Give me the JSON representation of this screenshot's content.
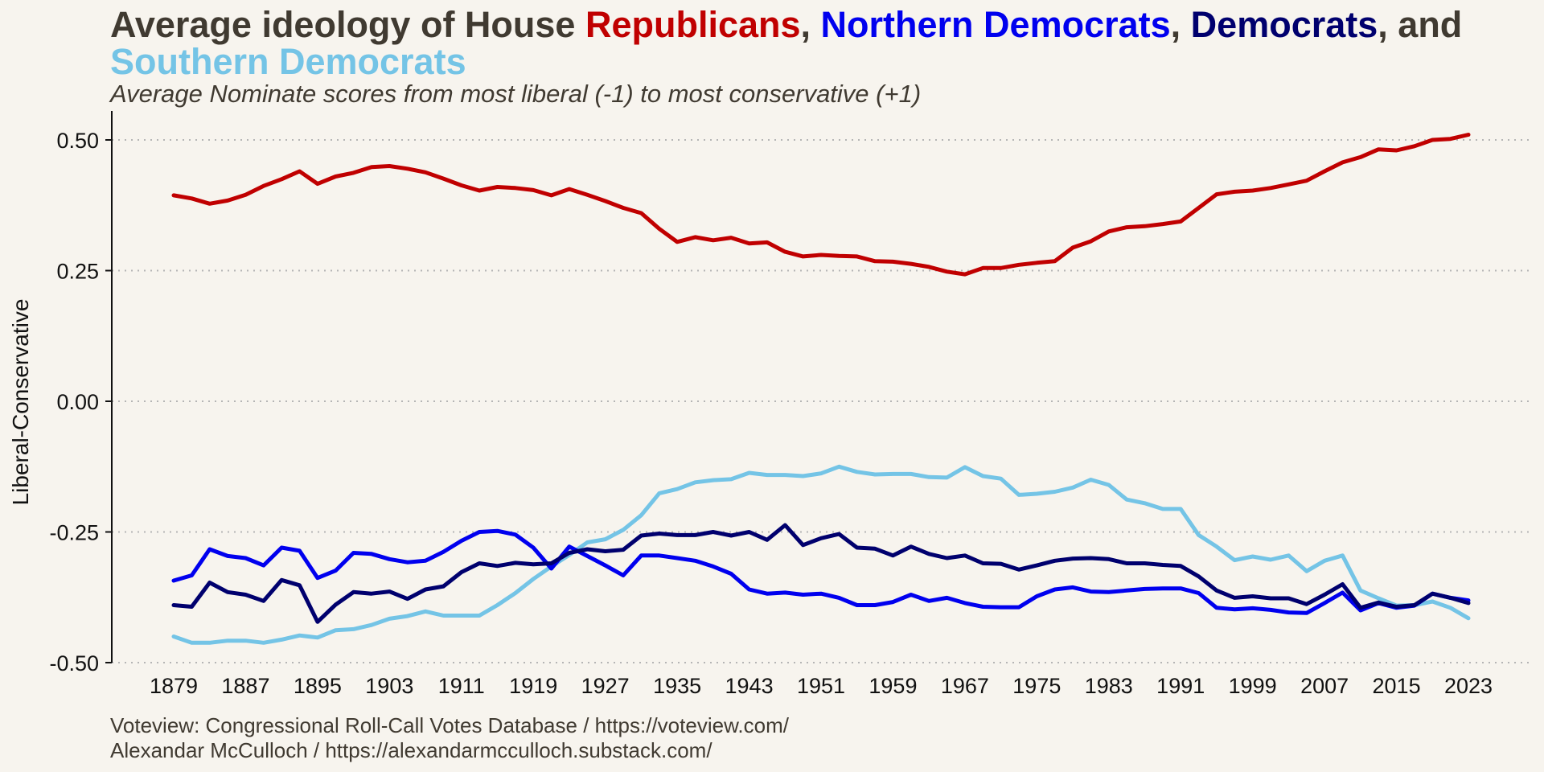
{
  "title_parts": {
    "p1": "Average ideology of House ",
    "rep": "Republicans",
    "c1": ", ",
    "nd": "Northern Democrats",
    "c2": ", ",
    "dem": "Democrats",
    "c3": ", and ",
    "sd": "Southern Democrats"
  },
  "subtitle": "Average Nominate scores from most liberal (-1) to most conservative (+1)",
  "caption": {
    "line1": "Voteview: Congressional Roll-Call Votes Database / https://voteview.com/",
    "line2": "Alexandar McCulloch / https://alexandarmcculloch.substack.com/"
  },
  "colors": {
    "republicans": "#c00000",
    "northern_democrats": "#0000ee",
    "democrats": "#00006e",
    "southern_democrats": "#74c4e6",
    "text": "#403a31",
    "background": "#f7f4ee",
    "grid": "#b5b5b5"
  },
  "chart_data": {
    "type": "line",
    "title": "Average ideology of House Republicans, Northern Democrats, Democrats, and Southern Democrats",
    "subtitle": "Average Nominate scores from most liberal (-1) to most conservative (+1)",
    "xlabel": "",
    "ylabel": "Liberal-Conservative",
    "xlim": [
      1879,
      2023
    ],
    "ylim": [
      -0.5,
      0.5
    ],
    "x_ticks": [
      1879,
      1887,
      1895,
      1903,
      1911,
      1919,
      1927,
      1935,
      1943,
      1951,
      1959,
      1967,
      1975,
      1983,
      1991,
      1999,
      2007,
      2015,
      2023
    ],
    "y_ticks": [
      -0.5,
      -0.25,
      0,
      0.25,
      0.5
    ],
    "y_tick_labels": [
      "-0.50",
      "-0.25",
      "0.00",
      "0.25",
      "0.50"
    ],
    "grid": "horizontal dotted",
    "legend": "none (series named in title)",
    "x": [
      1879,
      1881,
      1883,
      1885,
      1887,
      1889,
      1891,
      1893,
      1895,
      1897,
      1899,
      1901,
      1903,
      1905,
      1907,
      1909,
      1911,
      1913,
      1915,
      1917,
      1919,
      1921,
      1923,
      1925,
      1927,
      1929,
      1931,
      1933,
      1935,
      1937,
      1939,
      1941,
      1943,
      1945,
      1947,
      1949,
      1951,
      1953,
      1955,
      1957,
      1959,
      1961,
      1963,
      1965,
      1967,
      1969,
      1971,
      1973,
      1975,
      1977,
      1979,
      1981,
      1983,
      1985,
      1987,
      1989,
      1991,
      1993,
      1995,
      1997,
      1999,
      2001,
      2003,
      2005,
      2007,
      2009,
      2011,
      2013,
      2015,
      2017,
      2019,
      2021,
      2023
    ],
    "series": [
      {
        "name": "Republicans",
        "values": [
          0.394,
          0.388,
          0.378,
          0.384,
          0.395,
          0.412,
          0.425,
          0.44,
          0.416,
          0.43,
          0.437,
          0.448,
          0.45,
          0.445,
          0.438,
          0.426,
          0.413,
          0.403,
          0.41,
          0.408,
          0.404,
          0.394,
          0.406,
          0.395,
          0.383,
          0.37,
          0.36,
          0.33,
          0.305,
          0.314,
          0.308,
          0.313,
          0.302,
          0.304,
          0.286,
          0.277,
          0.28,
          0.278,
          0.277,
          0.268,
          0.267,
          0.263,
          0.257,
          0.248,
          0.243,
          0.255,
          0.255,
          0.261,
          0.265,
          0.268,
          0.294,
          0.306,
          0.325,
          0.333,
          0.335,
          0.339,
          0.344,
          0.37,
          0.396,
          0.401,
          0.403,
          0.408,
          0.415,
          0.422,
          0.44,
          0.457,
          0.467,
          0.482,
          0.48,
          0.488,
          0.5,
          0.502,
          0.51
        ]
      },
      {
        "name": "Northern Democrats",
        "values": [
          -0.343,
          -0.333,
          -0.283,
          -0.296,
          -0.3,
          -0.314,
          -0.28,
          -0.286,
          -0.338,
          -0.324,
          -0.29,
          -0.292,
          -0.302,
          -0.308,
          -0.305,
          -0.288,
          -0.267,
          -0.25,
          -0.248,
          -0.255,
          -0.28,
          -0.32,
          -0.278,
          -0.296,
          -0.314,
          -0.333,
          -0.295,
          -0.295,
          -0.3,
          -0.305,
          -0.316,
          -0.33,
          -0.36,
          -0.368,
          -0.366,
          -0.37,
          -0.368,
          -0.376,
          -0.39,
          -0.39,
          -0.384,
          -0.37,
          -0.382,
          -0.376,
          -0.386,
          -0.393,
          -0.394,
          -0.394,
          -0.373,
          -0.36,
          -0.356,
          -0.364,
          -0.365,
          -0.362,
          -0.359,
          -0.358,
          -0.358,
          -0.367,
          -0.395,
          -0.398,
          -0.396,
          -0.399,
          -0.404,
          -0.405,
          -0.386,
          -0.366,
          -0.4,
          -0.386,
          -0.395,
          -0.391,
          -0.368,
          -0.376,
          -0.381
        ]
      },
      {
        "name": "Democrats",
        "values": [
          -0.39,
          -0.393,
          -0.347,
          -0.365,
          -0.37,
          -0.382,
          -0.342,
          -0.352,
          -0.422,
          -0.389,
          -0.365,
          -0.368,
          -0.364,
          -0.378,
          -0.36,
          -0.354,
          -0.327,
          -0.31,
          -0.315,
          -0.309,
          -0.312,
          -0.31,
          -0.29,
          -0.283,
          -0.287,
          -0.284,
          -0.257,
          -0.253,
          -0.256,
          -0.256,
          -0.25,
          -0.257,
          -0.25,
          -0.265,
          -0.237,
          -0.275,
          -0.262,
          -0.254,
          -0.28,
          -0.282,
          -0.295,
          -0.278,
          -0.292,
          -0.3,
          -0.295,
          -0.31,
          -0.311,
          -0.322,
          -0.314,
          -0.305,
          -0.301,
          -0.3,
          -0.302,
          -0.31,
          -0.31,
          -0.313,
          -0.315,
          -0.335,
          -0.362,
          -0.376,
          -0.373,
          -0.377,
          -0.377,
          -0.388,
          -0.37,
          -0.35,
          -0.395,
          -0.385,
          -0.393,
          -0.39,
          -0.368,
          -0.376,
          -0.386
        ]
      },
      {
        "name": "Southern Democrats",
        "values": [
          -0.45,
          -0.462,
          -0.462,
          -0.458,
          -0.458,
          -0.462,
          -0.456,
          -0.448,
          -0.452,
          -0.438,
          -0.436,
          -0.428,
          -0.416,
          -0.411,
          -0.402,
          -0.41,
          -0.41,
          -0.41,
          -0.39,
          -0.367,
          -0.34,
          -0.316,
          -0.294,
          -0.27,
          -0.264,
          -0.246,
          -0.218,
          -0.176,
          -0.168,
          -0.155,
          -0.151,
          -0.149,
          -0.137,
          -0.141,
          -0.141,
          -0.143,
          -0.138,
          -0.125,
          -0.135,
          -0.14,
          -0.139,
          -0.139,
          -0.145,
          -0.146,
          -0.126,
          -0.143,
          -0.148,
          -0.179,
          -0.177,
          -0.173,
          -0.165,
          -0.15,
          -0.16,
          -0.188,
          -0.195,
          -0.206,
          -0.206,
          -0.256,
          -0.278,
          -0.304,
          -0.297,
          -0.303,
          -0.295,
          -0.325,
          -0.305,
          -0.295,
          -0.362,
          -0.377,
          -0.391,
          -0.39,
          -0.383,
          -0.395,
          -0.415
        ]
      }
    ]
  }
}
